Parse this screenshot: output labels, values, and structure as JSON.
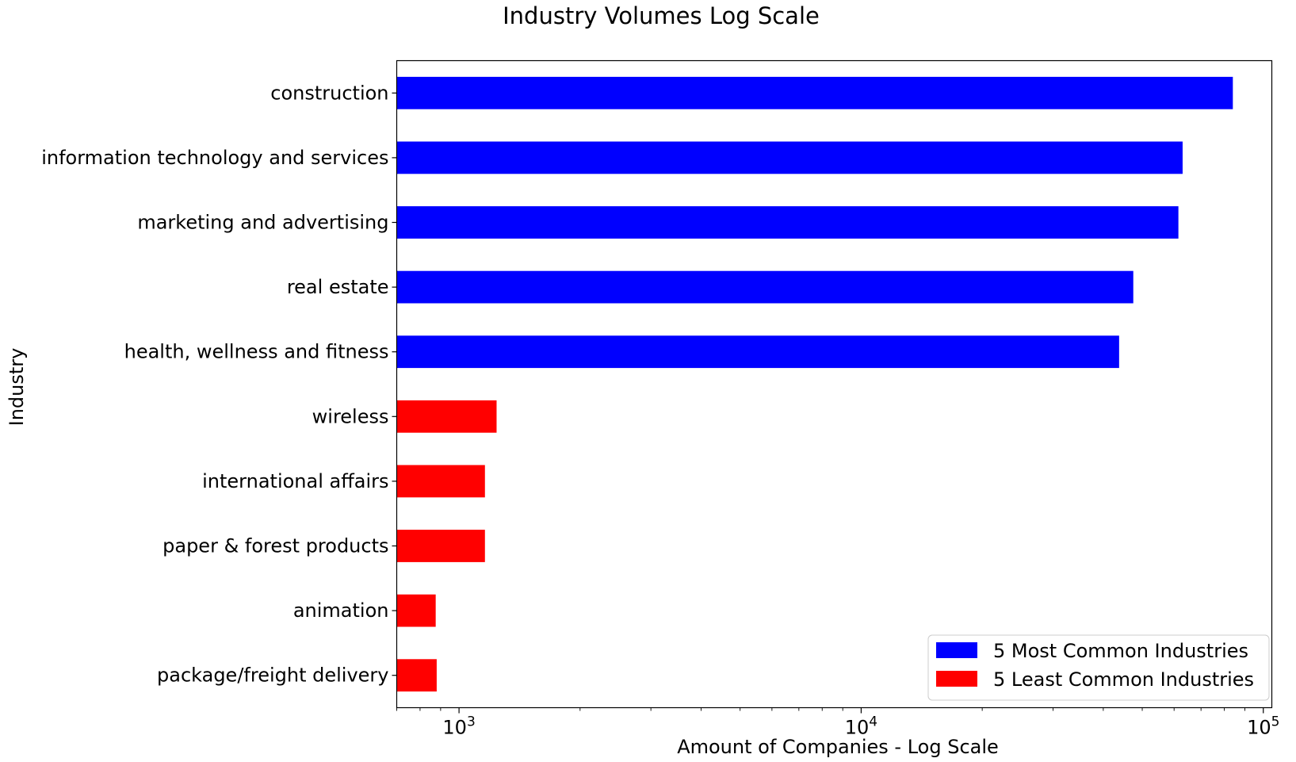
{
  "chart_data": {
    "type": "bar",
    "orientation": "horizontal",
    "title": "Industry Volumes Log Scale",
    "xlabel": "Amount of Companies - Log Scale",
    "ylabel": "Industry",
    "xscale": "log",
    "xlim": [
      700,
      105000
    ],
    "xticks": [
      {
        "value": 1000,
        "base": "10",
        "exp": "3"
      },
      {
        "value": 10000,
        "base": "10",
        "exp": "4"
      },
      {
        "value": 100000,
        "base": "10",
        "exp": "5"
      }
    ],
    "grid": false,
    "legend_position": "lower-right",
    "series": [
      {
        "name": "5 Most Common Industries",
        "color": "#0000ff"
      },
      {
        "name": "5 Least Common Industries",
        "color": "#ff0000"
      }
    ],
    "bars": [
      {
        "category": "construction",
        "value": 84000,
        "series": 0
      },
      {
        "category": "information technology and services",
        "value": 63000,
        "series": 0
      },
      {
        "category": "marketing and advertising",
        "value": 61500,
        "series": 0
      },
      {
        "category": "real estate",
        "value": 47500,
        "series": 0
      },
      {
        "category": "health, wellness and fitness",
        "value": 43800,
        "series": 0
      },
      {
        "category": "wireless",
        "value": 1240,
        "series": 1
      },
      {
        "category": "international affairs",
        "value": 1160,
        "series": 1
      },
      {
        "category": "paper & forest products",
        "value": 1160,
        "series": 1
      },
      {
        "category": "animation",
        "value": 875,
        "series": 1
      },
      {
        "category": "package/freight delivery",
        "value": 880,
        "series": 1
      }
    ]
  }
}
